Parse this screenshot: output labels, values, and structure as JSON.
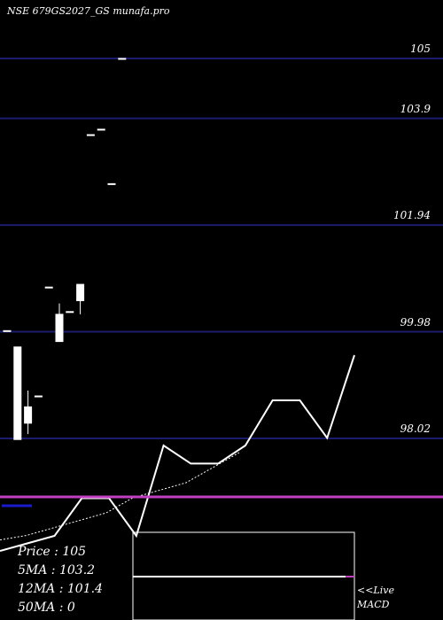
{
  "header": {
    "title": "NSE 679GS2027_GS munafa.pro"
  },
  "info": {
    "price": "Price   : 105",
    "ma5": "5MA : 103.2",
    "ma12": "12MA : 101.4",
    "ma50": "50MA : 0"
  },
  "macd": {
    "live": "<<Live",
    "label": "MACD"
  },
  "chart_data": {
    "type": "candlestick",
    "title": "NSE 679GS2027_GS munafa.pro",
    "ylim": [
      97.7,
      105.8
    ],
    "yticks": [
      105,
      103.9,
      101.94,
      99.98,
      98.02
    ],
    "ytick_labels": [
      "105",
      "103.9",
      "101.94",
      "99.98",
      "98.02"
    ],
    "candles": [
      {
        "open": 100.0,
        "high": 100.0,
        "low": 100.0,
        "close": 100.0,
        "color": "white"
      },
      {
        "open": 99.7,
        "high": 99.7,
        "low": 98.0,
        "close": 98.0,
        "color": "white"
      },
      {
        "open": 98.3,
        "high": 98.9,
        "low": 98.1,
        "close": 98.6,
        "color": "white"
      },
      {
        "open": 98.8,
        "high": 98.8,
        "low": 98.8,
        "close": 98.8,
        "color": "white"
      },
      {
        "open": 100.8,
        "high": 100.8,
        "low": 100.8,
        "close": 100.8,
        "color": "white"
      },
      {
        "open": 99.8,
        "high": 100.5,
        "low": 99.8,
        "close": 100.3,
        "color": "white"
      },
      {
        "open": 100.35,
        "high": 100.35,
        "low": 100.35,
        "close": 100.35,
        "color": "white"
      },
      {
        "open": 100.55,
        "high": 100.85,
        "low": 100.3,
        "close": 100.85,
        "color": "white"
      },
      {
        "open": 103.6,
        "high": 103.6,
        "low": 103.6,
        "close": 103.6,
        "color": "white"
      },
      {
        "open": 103.7,
        "high": 103.7,
        "low": 103.7,
        "close": 103.7,
        "color": "white"
      },
      {
        "open": 102.7,
        "high": 102.7,
        "low": 102.7,
        "close": 102.7,
        "color": "white"
      },
      {
        "open": 105.0,
        "high": 105.0,
        "low": 105.0,
        "close": 105.0,
        "color": "white"
      }
    ],
    "volume_line": [
      0.0,
      0.05,
      0.1,
      0.35,
      0.35,
      0.1,
      0.7,
      0.58,
      0.58,
      0.7,
      1.0,
      1.0,
      0.75,
      1.3
    ],
    "ma_dotted": [
      0.72,
      0.75,
      0.8,
      0.85,
      0.9,
      1.0,
      1.05,
      1.1,
      1.2,
      1.3
    ],
    "colors": {
      "background": "#000000",
      "grid": "#1c1c6e",
      "candle": "#ffffff",
      "volume_marker": "#1a1acd",
      "macd_line": "#c040c0"
    },
    "macd": {
      "value": 0.0
    }
  }
}
